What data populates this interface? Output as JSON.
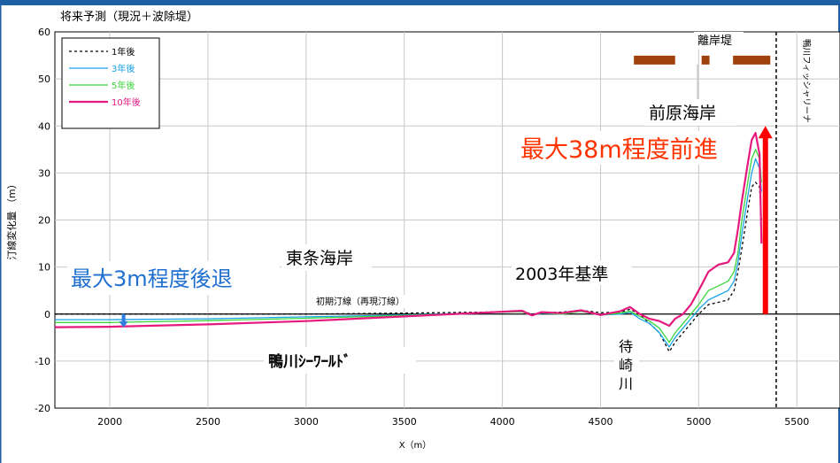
{
  "chart_data": {
    "type": "line",
    "title": "将来予測（現況＋波除堤）",
    "xlabel": "X（m）",
    "ylabel": "汀線変化量 （m）",
    "xlim": [
      1720,
      5720
    ],
    "ylim": [
      -20,
      60
    ],
    "x_ticks": [
      2000,
      2500,
      3000,
      3500,
      4000,
      4500,
      5000,
      5500
    ],
    "y_ticks": [
      -20,
      -10,
      0,
      10,
      20,
      30,
      40,
      50,
      60
    ],
    "grid": true,
    "legend_position": "top-left",
    "series": [
      {
        "name": "1年後",
        "color": "#000000",
        "dash": "3,3",
        "width": 1.3,
        "points": [
          [
            1720,
            0
          ],
          [
            2000,
            0
          ],
          [
            2500,
            0
          ],
          [
            3000,
            0
          ],
          [
            3500,
            0.2
          ],
          [
            3900,
            0.4
          ],
          [
            4100,
            0.6
          ],
          [
            4150,
            0
          ],
          [
            4200,
            0.3
          ],
          [
            4300,
            0.4
          ],
          [
            4400,
            0.8
          ],
          [
            4500,
            0.3
          ],
          [
            4600,
            0.4
          ],
          [
            4650,
            1
          ],
          [
            4700,
            0
          ],
          [
            4750,
            -2
          ],
          [
            4800,
            -4
          ],
          [
            4850,
            -8
          ],
          [
            4880,
            -6
          ],
          [
            4920,
            -4
          ],
          [
            4960,
            -2
          ],
          [
            5000,
            0
          ],
          [
            5050,
            2
          ],
          [
            5100,
            2.5
          ],
          [
            5150,
            3
          ],
          [
            5180,
            5
          ],
          [
            5200,
            9
          ],
          [
            5220,
            14
          ],
          [
            5250,
            22
          ],
          [
            5270,
            27
          ],
          [
            5290,
            28
          ],
          [
            5310,
            27
          ],
          [
            5320,
            20
          ]
        ]
      },
      {
        "name": "3年後",
        "color": "#1aa3e8",
        "dash": "",
        "width": 1.3,
        "points": [
          [
            1720,
            -1.2
          ],
          [
            2000,
            -1.2
          ],
          [
            2500,
            -1
          ],
          [
            3000,
            -0.6
          ],
          [
            3500,
            -0.2
          ],
          [
            3900,
            0.3
          ],
          [
            4100,
            0.5
          ],
          [
            4150,
            -0.3
          ],
          [
            4200,
            0.2
          ],
          [
            4300,
            0
          ],
          [
            4400,
            0.6
          ],
          [
            4500,
            -0.2
          ],
          [
            4600,
            0
          ],
          [
            4650,
            0.4
          ],
          [
            4700,
            -1
          ],
          [
            4750,
            -2
          ],
          [
            4800,
            -4
          ],
          [
            4850,
            -7
          ],
          [
            4880,
            -5
          ],
          [
            4920,
            -3
          ],
          [
            4960,
            -1
          ],
          [
            5000,
            1
          ],
          [
            5050,
            3
          ],
          [
            5100,
            4
          ],
          [
            5150,
            5
          ],
          [
            5180,
            7
          ],
          [
            5200,
            11
          ],
          [
            5220,
            17
          ],
          [
            5250,
            25
          ],
          [
            5270,
            30
          ],
          [
            5290,
            33
          ],
          [
            5310,
            31
          ],
          [
            5320,
            26
          ]
        ]
      },
      {
        "name": "5年後",
        "color": "#3cd63c",
        "dash": "",
        "width": 1.3,
        "points": [
          [
            1720,
            -1.8
          ],
          [
            2000,
            -1.8
          ],
          [
            2500,
            -1.4
          ],
          [
            3000,
            -0.9
          ],
          [
            3500,
            -0.3
          ],
          [
            3900,
            0.3
          ],
          [
            4100,
            0.5
          ],
          [
            4150,
            -0.3
          ],
          [
            4200,
            0.3
          ],
          [
            4300,
            0
          ],
          [
            4400,
            0.6
          ],
          [
            4500,
            -0.2
          ],
          [
            4600,
            0.2
          ],
          [
            4650,
            0.6
          ],
          [
            4700,
            -0.5
          ],
          [
            4750,
            -1.5
          ],
          [
            4800,
            -3
          ],
          [
            4850,
            -6
          ],
          [
            4880,
            -4
          ],
          [
            4920,
            -2
          ],
          [
            4960,
            0
          ],
          [
            5000,
            2
          ],
          [
            5050,
            5
          ],
          [
            5100,
            6
          ],
          [
            5150,
            7
          ],
          [
            5180,
            9
          ],
          [
            5200,
            13
          ],
          [
            5220,
            20
          ],
          [
            5250,
            28
          ],
          [
            5270,
            33
          ],
          [
            5290,
            35
          ],
          [
            5310,
            33
          ],
          [
            5320,
            28
          ]
        ]
      },
      {
        "name": "10年後",
        "color": "#e6197f",
        "dash": "",
        "width": 2.2,
        "points": [
          [
            1720,
            -2.8
          ],
          [
            2000,
            -2.7
          ],
          [
            2500,
            -2.2
          ],
          [
            3000,
            -1.5
          ],
          [
            3500,
            -0.5
          ],
          [
            3900,
            0.3
          ],
          [
            4100,
            0.7
          ],
          [
            4150,
            -0.3
          ],
          [
            4200,
            0.4
          ],
          [
            4300,
            0.2
          ],
          [
            4400,
            0.8
          ],
          [
            4500,
            -0.2
          ],
          [
            4600,
            0.6
          ],
          [
            4650,
            1.5
          ],
          [
            4700,
            0
          ],
          [
            4750,
            -1
          ],
          [
            4800,
            -1.5
          ],
          [
            4850,
            -2.5
          ],
          [
            4880,
            -1
          ],
          [
            4920,
            0
          ],
          [
            4960,
            2
          ],
          [
            5000,
            5
          ],
          [
            5050,
            9
          ],
          [
            5100,
            10.5
          ],
          [
            5150,
            11
          ],
          [
            5180,
            13
          ],
          [
            5200,
            18
          ],
          [
            5220,
            24
          ],
          [
            5250,
            32
          ],
          [
            5270,
            37
          ],
          [
            5290,
            38.5
          ],
          [
            5310,
            34
          ],
          [
            5320,
            15
          ]
        ]
      }
    ],
    "reference_line": {
      "y": 0,
      "label": "初期汀線（再現汀線）"
    },
    "structures": {
      "label": "離岸堤",
      "color": "#a0400b",
      "y_center": 54,
      "segments": [
        [
          4670,
          4880
        ],
        [
          5015,
          5055
        ],
        [
          5175,
          5365
        ]
      ]
    },
    "vertical_marker": {
      "x": 5395,
      "label": "鴨川フィッシャリーナ"
    },
    "advance_arrow": {
      "x": 5340,
      "y_from": 0,
      "y_to": 40,
      "color": "#ff0000"
    },
    "retreat_arrow": {
      "x": 2070,
      "y_from": 0,
      "y_to": -2.5,
      "color": "#2f7de0"
    },
    "annotations": {
      "max_advance": {
        "text": "最大38m程度前進",
        "color": "#ff3300"
      },
      "max_retreat": {
        "text": "最大3m程度後退",
        "color": "#1f6fd1"
      },
      "maehara": "前原海岸",
      "tojo": "東条海岸",
      "base_year": "2003年基準",
      "seaworld": "鴨川ｼｰﾜｰﾙﾄﾞ",
      "machizaki_lines": [
        "待",
        "崎",
        "川"
      ]
    }
  }
}
